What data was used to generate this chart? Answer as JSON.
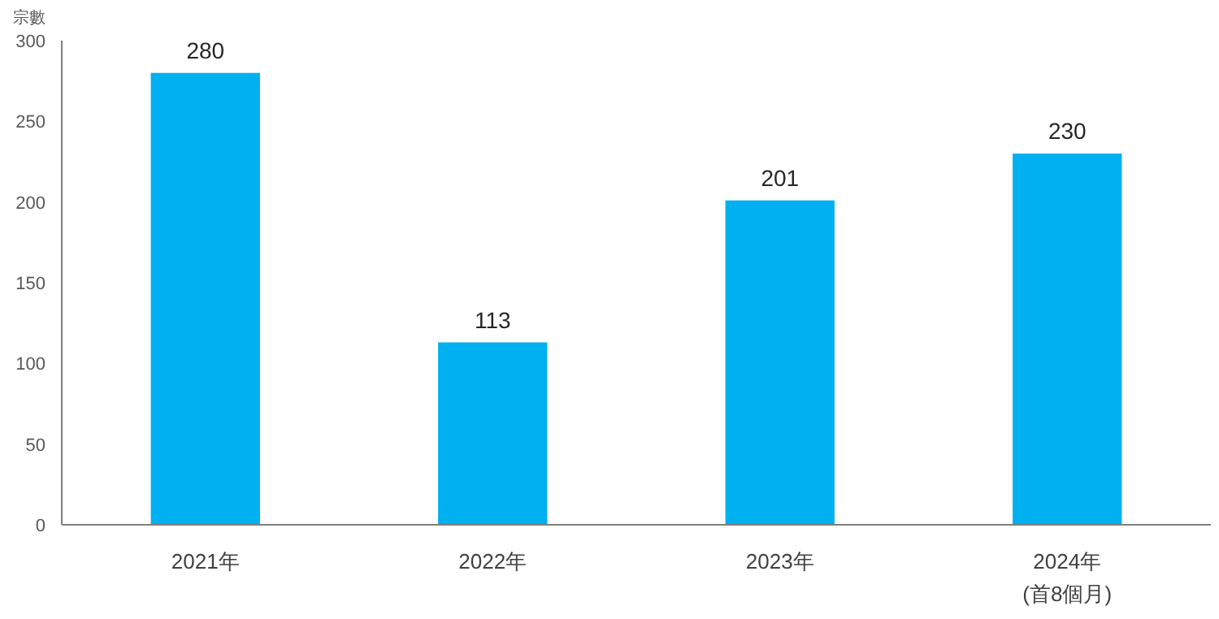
{
  "chart_data": {
    "type": "bar",
    "ylabel": "宗數",
    "categories": [
      "2021年",
      "2022年",
      "2023年",
      "2024年\n(首8個月)"
    ],
    "values": [
      280,
      113,
      201,
      230
    ],
    "color": "#00b0f0",
    "ylim": [
      0,
      300
    ],
    "yticks": [
      0,
      50,
      100,
      150,
      200,
      250,
      300
    ],
    "data_labels": true
  }
}
